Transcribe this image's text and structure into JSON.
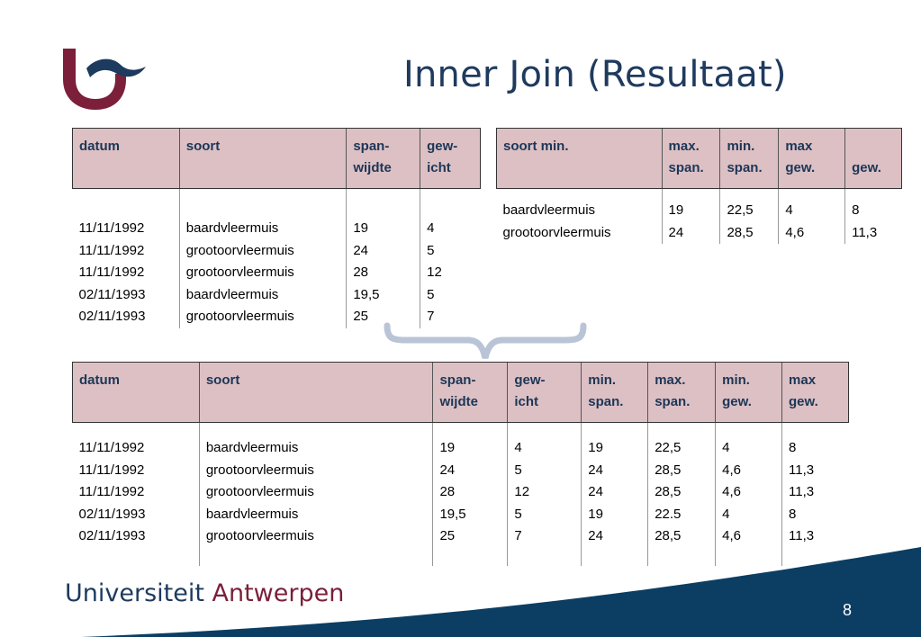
{
  "slide": {
    "title": "Inner Join (Resultaat)",
    "page_number": "8"
  },
  "footer": {
    "brand_part1": "Universiteit",
    "brand_part2": "Antwerpen"
  },
  "colors": {
    "header_bg": "#dcc0c4",
    "header_text": "#1d3657",
    "title": "#1f3a5e",
    "logo_red": "#7b1f3a",
    "logo_blue": "#1d3a5f",
    "footer_blue": "#0c3e63",
    "brace": "#b9c4d6"
  },
  "table_observations": {
    "headers": [
      [
        "datum",
        ""
      ],
      [
        "soort",
        ""
      ],
      [
        "span-",
        "wijdte"
      ],
      [
        "gew-",
        "icht"
      ]
    ],
    "rows": [
      [
        "11/11/1992",
        "baardvleermuis",
        "19",
        "4"
      ],
      [
        "11/11/1992",
        "grootoorvleermuis",
        "24",
        "5"
      ],
      [
        "11/11/1992",
        "grootoorvleermuis",
        "28",
        "12"
      ],
      [
        "02/11/1993",
        "baardvleermuis",
        "19,5",
        "5"
      ],
      [
        "02/11/1993",
        "grootoorvleermuis",
        "25",
        "7"
      ]
    ]
  },
  "table_species": {
    "headers": [
      [
        "soort min.",
        ""
      ],
      [
        "max.",
        "span."
      ],
      [
        "min.",
        "span."
      ],
      [
        "max",
        "gew."
      ],
      [
        "",
        "gew."
      ]
    ],
    "rows": [
      [
        "baardvleermuis",
        "19",
        "22,5",
        "4",
        "8"
      ],
      [
        "grootoorvleermuis",
        "24",
        "28,5",
        "4,6",
        "11,3"
      ]
    ]
  },
  "table_result": {
    "headers": [
      [
        "datum",
        ""
      ],
      [
        "soort",
        ""
      ],
      [
        "span-",
        "wijdte"
      ],
      [
        "gew-",
        "icht"
      ],
      [
        "min.",
        "span."
      ],
      [
        "max.",
        "span."
      ],
      [
        "min.",
        "gew."
      ],
      [
        "max",
        "gew."
      ]
    ],
    "rows": [
      [
        "11/11/1992",
        "baardvleermuis",
        "19",
        "4",
        "19",
        "22,5",
        "4",
        "8"
      ],
      [
        "11/11/1992",
        "grootoorvleermuis",
        "24",
        "5",
        "24",
        "28,5",
        "4,6",
        "11,3"
      ],
      [
        "11/11/1992",
        "grootoorvleermuis",
        "28",
        "12",
        "24",
        "28,5",
        "4,6",
        "11,3"
      ],
      [
        "02/11/1993",
        "baardvleermuis",
        "19,5",
        "5",
        "19",
        "22.5",
        "4",
        "8"
      ],
      [
        "02/11/1993",
        "grootoorvleermuis",
        "25",
        "7",
        "24",
        "28,5",
        "4,6",
        "11,3"
      ]
    ]
  }
}
